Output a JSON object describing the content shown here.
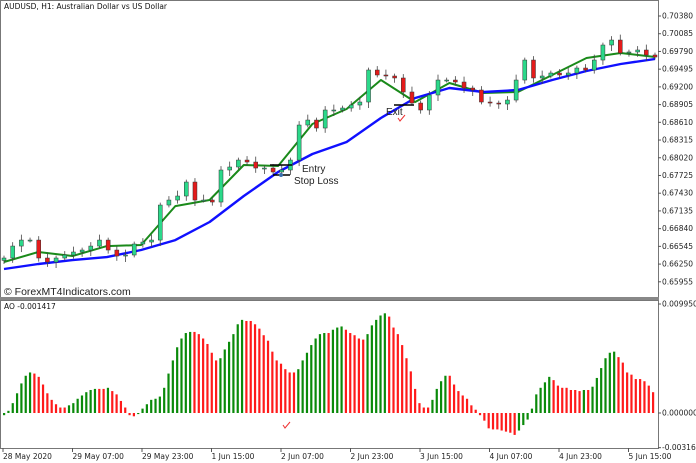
{
  "header": {
    "title": "AUDUSD, H1:  Australian Dollar vs US Dollar",
    "watermark": "© ForexMT4Indicators.com"
  },
  "annotations": {
    "entry": "Entry",
    "stop_loss": "Stop Loss",
    "exit": "Exit"
  },
  "colors": {
    "bull_candle": "#2bd98a",
    "bear_candle": "#e41b1b",
    "fast_ma": "#1a8a1a",
    "slow_ma": "#1010ff",
    "ao_up": "#0a8a0a",
    "ao_down": "#ff1a1a"
  },
  "chart_data": [
    {
      "type": "candlestick",
      "title": "AUDUSD, H1:  Australian Dollar vs US Dollar",
      "y_ticks": [
        "0.70380",
        "0.70085",
        "0.69790",
        "0.69495",
        "0.69200",
        "0.68905",
        "0.68610",
        "0.68315",
        "0.68020",
        "0.67725",
        "0.67430",
        "0.67135",
        "0.66840",
        "0.66545",
        "0.66250",
        "0.65955"
      ],
      "ylim": [
        0.65955,
        0.7038
      ],
      "x_ticks": [
        "28 May 2020",
        "29 May 07:00",
        "29 May 23:00",
        "1 Jun 15:00",
        "2 Jun 07:00",
        "2 Jun 23:00",
        "3 Jun 15:00",
        "4 Jun 07:00",
        "4 Jun 23:00",
        "5 Jun 15:00"
      ],
      "closes": [
        0.66351,
        0.6655,
        0.6665,
        0.6665,
        0.66351,
        0.66284,
        0.66351,
        0.66401,
        0.66451,
        0.66484,
        0.6655,
        0.6665,
        0.66484,
        0.66384,
        0.66401,
        0.66584,
        0.66617,
        0.6665,
        0.67233,
        0.67316,
        0.67383,
        0.67616,
        0.67316,
        0.67316,
        0.67283,
        0.67816,
        0.67866,
        0.67982,
        0.67949,
        0.67849,
        0.67849,
        0.67783,
        0.67816,
        0.67982,
        0.68565,
        0.68648,
        0.68515,
        0.68815,
        0.68815,
        0.68848,
        0.68898,
        0.68948,
        0.69481,
        0.69398,
        0.69381,
        0.69348,
        0.69115,
        0.68931,
        0.68815,
        0.69065,
        0.69314,
        0.69314,
        0.69281,
        0.69181,
        0.69148,
        0.68948,
        0.68931,
        0.68915,
        0.68981,
        0.69314,
        0.69647,
        0.69348,
        0.69381,
        0.69431,
        0.69398,
        0.69431,
        0.69514,
        0.69481,
        0.69647,
        0.69897,
        0.6998,
        0.69764,
        0.69781,
        0.69814,
        0.69731,
        0.69697
      ],
      "series": [
        {
          "values": [
            0.66284,
            0.66451,
            0.66384,
            0.6655,
            0.66567,
            0.67216,
            0.67316,
            0.67899,
            0.67882,
            0.68582,
            0.68832,
            0.69314,
            0.68948,
            0.69264,
            0.69098,
            0.69115,
            0.69398,
            0.69681,
            0.69764,
            0.69697
          ]
        },
        {
          "values": [
            0.66168,
            0.66251,
            0.66317,
            0.66367,
            0.66484,
            0.6665,
            0.6695,
            0.67383,
            0.67783,
            0.68082,
            0.68282,
            0.68682,
            0.69015,
            0.69181,
            0.69115,
            0.69148,
            0.69314,
            0.69464,
            0.69581,
            0.69664
          ]
        }
      ]
    },
    {
      "type": "bar",
      "title": "AO -0.001417",
      "y_ticks": [
        "0.009950",
        "0.000000",
        "-0.003165"
      ],
      "ylim": [
        -0.003165,
        0.00995
      ],
      "values": [
        -0.0002,
        0.0002,
        0.0009,
        0.0018,
        0.0027,
        0.0034,
        0.0037,
        0.0036,
        0.0033,
        0.0026,
        0.0018,
        0.0012,
        0.0008,
        0.0005,
        0.0005,
        0.0007,
        0.0009,
        0.0013,
        0.0016,
        0.0019,
        0.0021,
        0.0022,
        0.0022,
        0.0022,
        0.0023,
        0.002,
        0.0017,
        0.0011,
        0.0005,
        -0.0002,
        -0.0003,
        -0.0001,
        0.0004,
        0.0008,
        0.0012,
        0.0013,
        0.0015,
        0.0023,
        0.0036,
        0.0048,
        0.006,
        0.0068,
        0.0073,
        0.0074,
        0.0074,
        0.0072,
        0.0068,
        0.0063,
        0.0055,
        0.0048,
        0.005,
        0.0058,
        0.0065,
        0.0072,
        0.0081,
        0.0085,
        0.0084,
        0.0084,
        0.0081,
        0.0077,
        0.0071,
        0.0066,
        0.0056,
        0.0048,
        0.0045,
        0.004,
        0.0037,
        0.0037,
        0.004,
        0.0048,
        0.0055,
        0.0062,
        0.0068,
        0.0072,
        0.0073,
        0.0073,
        0.0076,
        0.0078,
        0.0079,
        0.0076,
        0.0073,
        0.0071,
        0.0068,
        0.0067,
        0.0072,
        0.008,
        0.0085,
        0.0089,
        0.0091,
        0.0088,
        0.0078,
        0.0072,
        0.0062,
        0.005,
        0.0038,
        0.0022,
        0.0009,
        0.0005,
        0.0005,
        0.0012,
        0.0022,
        0.0029,
        0.0034,
        0.0034,
        0.0026,
        0.002,
        0.0016,
        0.0013,
        0.0007,
        0.0003,
        -0.0002,
        -0.0007,
        -0.0014,
        -0.0015,
        -0.0015,
        -0.0016,
        -0.0017,
        -0.0018,
        -0.002,
        -0.0016,
        -0.0011,
        -0.0006,
        0.0004,
        0.0017,
        0.0023,
        0.0028,
        0.0033,
        0.003,
        0.0025,
        0.0023,
        0.0023,
        0.0021,
        0.0021,
        0.002,
        0.0021,
        0.0021,
        0.0024,
        0.0032,
        0.0041,
        0.005,
        0.0055,
        0.0056,
        0.0051,
        0.0046,
        0.0037,
        0.0035,
        0.0031,
        0.0031,
        0.0029,
        0.0025,
        0.0019
      ]
    }
  ]
}
